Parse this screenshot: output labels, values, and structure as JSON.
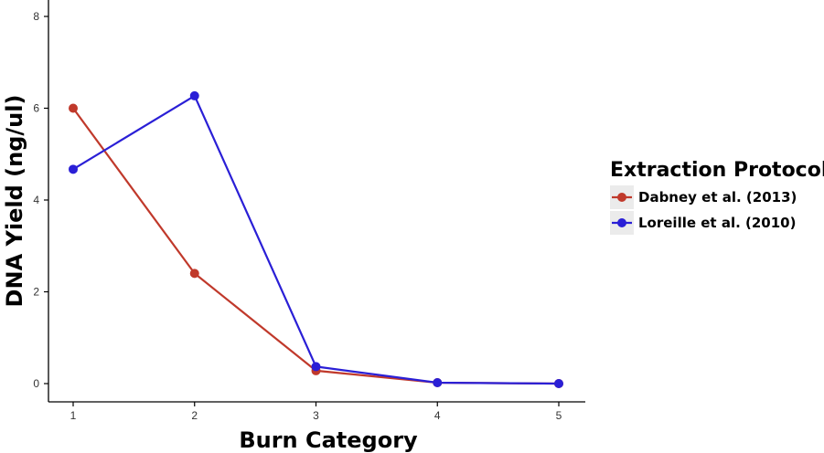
{
  "chart_data": {
    "type": "line",
    "title": "",
    "xlabel": "Burn Category",
    "ylabel": "DNA Yield (ng/ul)",
    "x": [
      1,
      2,
      3,
      4,
      5
    ],
    "xticks": [
      "1",
      "2",
      "3",
      "4",
      "5"
    ],
    "yticks": [
      "0",
      "2",
      "4",
      "6",
      "8"
    ],
    "ylim": [
      0,
      8
    ],
    "xlim": [
      1,
      5
    ],
    "grid": false,
    "legend": {
      "title": "Extraction Protocol",
      "placement": "right"
    },
    "series": [
      {
        "name": "Dabney et al. (2013)",
        "color": "#c0392b",
        "values": [
          6.0,
          2.4,
          0.28,
          0.02,
          0.0
        ]
      },
      {
        "name": "Loreille et al. (2010)",
        "color": "#2a1fd6",
        "values": [
          4.67,
          6.27,
          0.37,
          0.02,
          0.0
        ]
      }
    ]
  }
}
